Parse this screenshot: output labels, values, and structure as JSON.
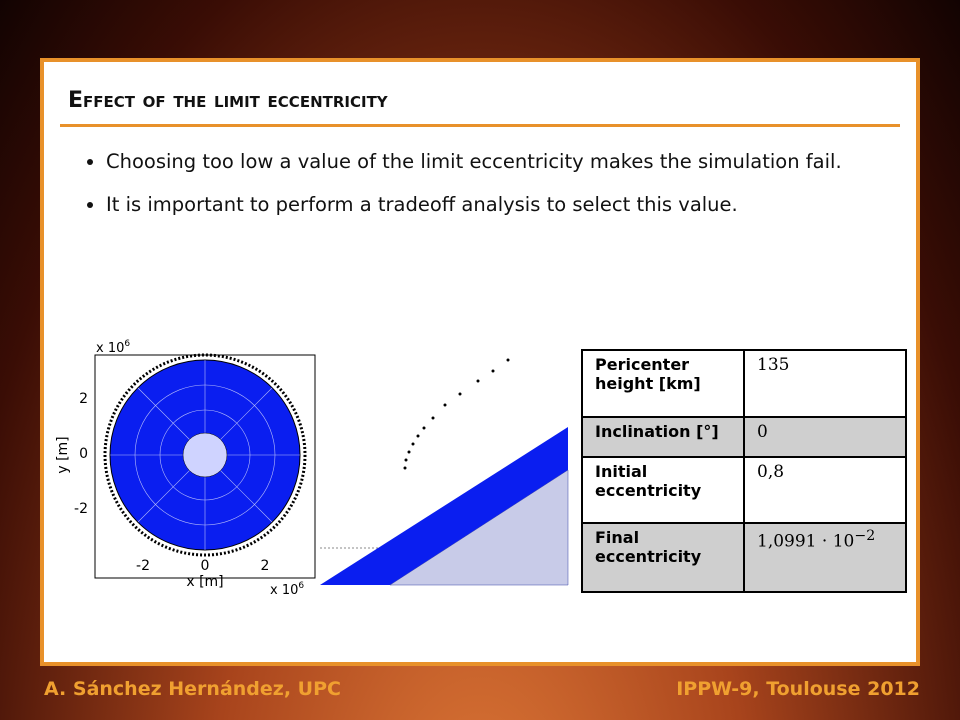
{
  "header": {
    "title": "Effect of the limit eccentricity"
  },
  "bullets": [
    "Choosing too low a value of the limit eccentricity makes the simulation fail.",
    "It is important to perform a tradeoff analysis to select this value."
  ],
  "plot": {
    "y_label": "y [m]",
    "x_label": "x [m]",
    "y_scale": "x 10",
    "y_scale_exp": "6",
    "x_scale": "x 10",
    "x_scale_exp": "6",
    "yticks": [
      "2",
      "0",
      "-2"
    ],
    "xticks": [
      "-2",
      "0",
      "2"
    ]
  },
  "table": {
    "rows": [
      {
        "label": "Pericenter height  [km]",
        "value": "135"
      },
      {
        "label": "Inclination [°]",
        "value": "0"
      },
      {
        "label": "Initial eccentricity",
        "value": "0,8"
      },
      {
        "label": "Final eccentricity",
        "value": "1,0991 · 10",
        "exponent": "−2"
      }
    ]
  },
  "footer": {
    "left": "A. Sánchez Hernández, UPC",
    "right": "IPPW-9, Toulouse 2012"
  }
}
